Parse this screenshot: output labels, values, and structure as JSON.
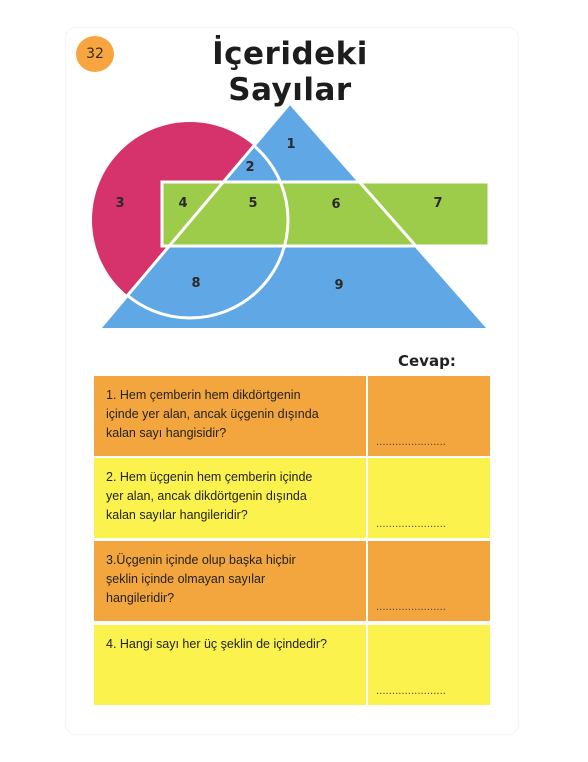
{
  "page": {
    "number": "32",
    "title": "İçerideki Sayılar"
  },
  "colors": {
    "circle": "#d6336c",
    "triangle": "#5fa8e5",
    "rectangle": "#9ccc4a",
    "badge": "#f7a541",
    "row_orange": "#f3a63e",
    "row_yellow": "#fbf24d"
  },
  "diagram": {
    "labels": [
      {
        "name": "region-1",
        "text": "1"
      },
      {
        "name": "region-2",
        "text": "2"
      },
      {
        "name": "region-3",
        "text": "3"
      },
      {
        "name": "region-4",
        "text": "4"
      },
      {
        "name": "region-5",
        "text": "5"
      },
      {
        "name": "region-6",
        "text": "6"
      },
      {
        "name": "region-7",
        "text": "7"
      },
      {
        "name": "region-8",
        "text": "8"
      },
      {
        "name": "region-9",
        "text": "9"
      }
    ]
  },
  "answers": {
    "heading": "Cevap:",
    "dots": "......................"
  },
  "questions": [
    {
      "lines": [
        "1. Hem çemberin hem dikdörtgenin",
        "içinde yer alan, ancak üçgenin dışında",
        "kalan sayı hangisidir?"
      ],
      "color": "#f3a63e"
    },
    {
      "lines": [
        "2. Hem üçgenin hem çemberin içinde",
        "yer alan, ancak dikdörtgenin dışında",
        "kalan sayılar hangileridir?"
      ],
      "color": "#fbf24d"
    },
    {
      "lines": [
        "3.Üçgenin içinde olup başka hiçbir",
        "şeklin içinde olmayan sayılar",
        "hangileridir?"
      ],
      "color": "#f3a63e"
    },
    {
      "lines": [
        "4. Hangi sayı her üç şeklin de içindedir?"
      ],
      "color": "#fbf24d"
    }
  ]
}
